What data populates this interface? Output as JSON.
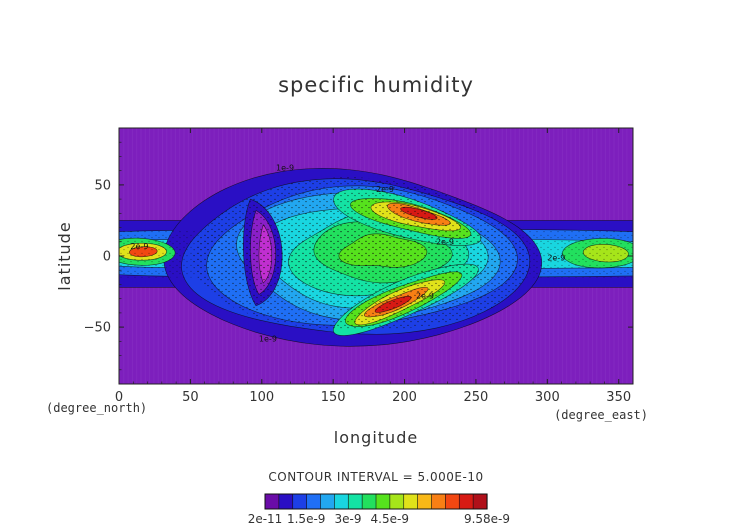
{
  "chart_data": {
    "type": "heatmap",
    "title": "specific humidity",
    "xlabel": "longitude",
    "ylabel": "latitude",
    "x_unit": "(degree_east)",
    "y_unit": "(degree_north)",
    "xlim": [
      0,
      360
    ],
    "ylim": [
      -90,
      90
    ],
    "x_ticks": [
      0,
      50,
      100,
      150,
      200,
      250,
      300,
      350
    ],
    "y_ticks": [
      -50,
      0,
      50
    ],
    "x_tick_labels": [
      "0",
      "50",
      "100",
      "150",
      "200",
      "250",
      "300",
      "350"
    ],
    "y_tick_labels": [
      "−50",
      "0",
      "50"
    ],
    "contour_interval_text": "CONTOUR INTERVAL = 5.000E-10",
    "colorbar": {
      "min": 2e-11,
      "max": 9.58e-09,
      "tick_values": [
        2e-11,
        1.5e-09,
        3e-09,
        4.5e-09,
        9.58e-09
      ],
      "tick_labels": [
        "2e-11",
        "1.5e-9",
        "3e-9",
        "4.5e-9",
        "9.58e-9"
      ],
      "colors": [
        "#6a0ca8",
        "#2a0fc4",
        "#1d3fe6",
        "#1f6ff5",
        "#22a7f0",
        "#19d6e0",
        "#14e3a4",
        "#22e05e",
        "#56e21d",
        "#a6e51a",
        "#e0e21a",
        "#f8b817",
        "#f87f14",
        "#f24712",
        "#d71a14",
        "#b0101a"
      ]
    },
    "background_color": "#7d1fbd",
    "contour_labels": [
      {
        "text": "2e-9",
        "lon": 8,
        "lat": 5
      },
      {
        "text": "1e-9",
        "lon": 110,
        "lat": 60
      },
      {
        "text": "2e-9",
        "lon": 180,
        "lat": 45
      },
      {
        "text": "2e-9",
        "lon": 222,
        "lat": 8
      },
      {
        "text": "2e-9",
        "lon": 300,
        "lat": -3
      },
      {
        "text": "1e-9",
        "lon": 98,
        "lat": -60
      },
      {
        "text": "2e-9",
        "lon": 208,
        "lat": -30
      }
    ]
  }
}
